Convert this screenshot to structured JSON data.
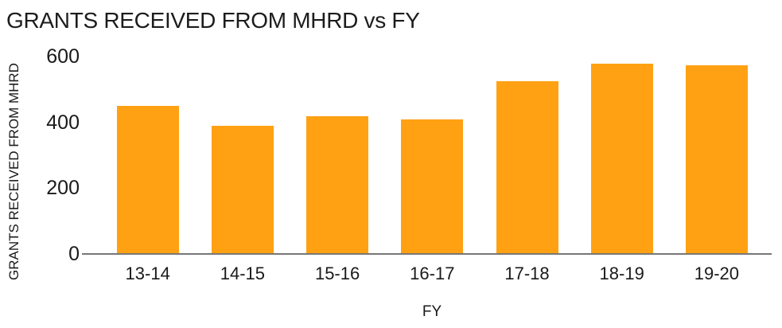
{
  "title": "GRANTS RECEIVED FROM MHRD vs FY",
  "colors": {
    "bar": "#FFA113",
    "axis_line": "#777777",
    "text": "#1A1A1A"
  },
  "chart_data": {
    "type": "bar",
    "title": "GRANTS RECEIVED FROM MHRD vs FY",
    "xlabel": "FY",
    "ylabel": "GRANTS RECEIVED FROM MHRD",
    "categories": [
      "13-14",
      "14-15",
      "15-16",
      "16-17",
      "17-18",
      "18-19",
      "19-20"
    ],
    "values": [
      450,
      390,
      420,
      410,
      525,
      580,
      575
    ],
    "ylim": [
      0,
      600
    ],
    "yticks": [
      0,
      200,
      400,
      600
    ],
    "bar_color": "#FFA113",
    "grid": false,
    "legend": false
  }
}
